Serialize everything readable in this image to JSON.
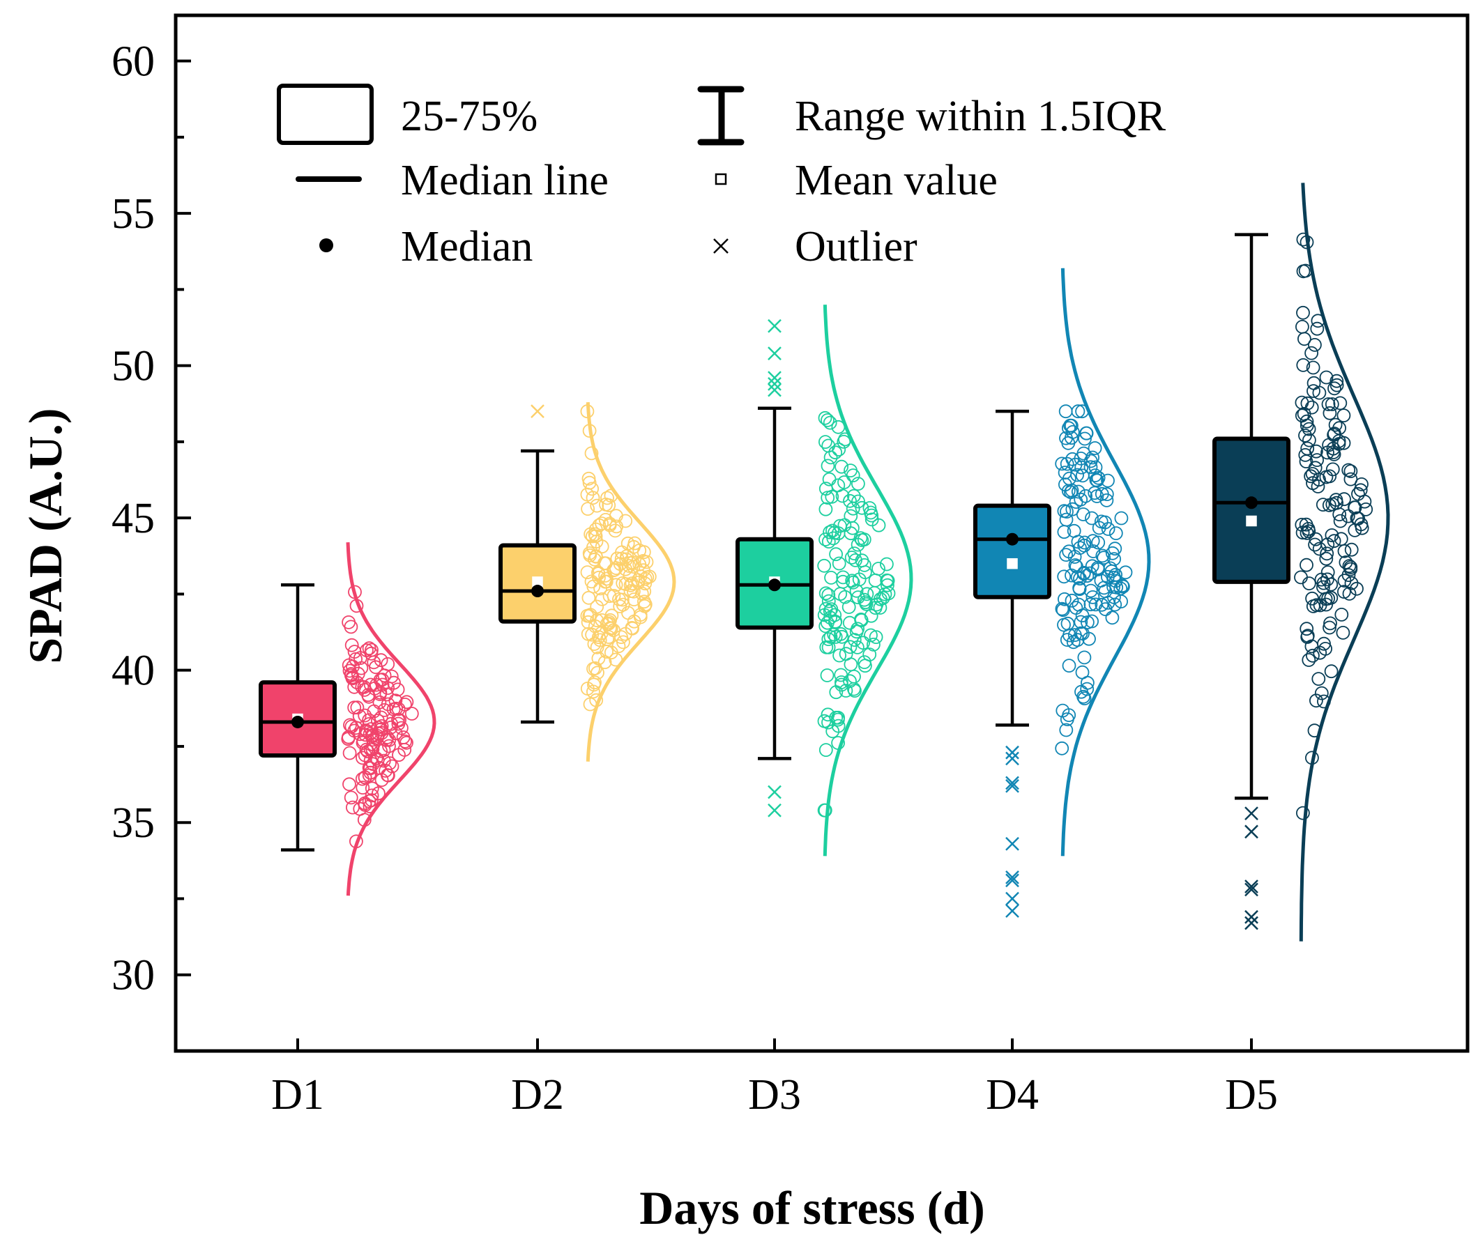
{
  "chart_data": {
    "type": "raincloud-boxplot",
    "title": "",
    "xlabel": "Days of stress (d)",
    "ylabel": "SPAD (A.U.)",
    "ylim": [
      27.5,
      61.5
    ],
    "yticks": [
      30,
      35,
      40,
      45,
      50,
      55,
      60
    ],
    "categories": [
      "D1",
      "D2",
      "D3",
      "D4",
      "D5"
    ],
    "colors": [
      "#f0436b",
      "#fcd06c",
      "#1dcf9f",
      "#1186b4",
      "#0a3e56"
    ],
    "box": [
      {
        "category": "D1",
        "whisker_low": 34.1,
        "q1": 37.2,
        "median": 38.3,
        "q3": 39.6,
        "whisker_high": 42.8,
        "mean": 38.4,
        "outliers": []
      },
      {
        "category": "D2",
        "whisker_low": 38.3,
        "q1": 41.6,
        "median": 42.6,
        "q3": 44.1,
        "whisker_high": 47.2,
        "mean": 42.9,
        "outliers": [
          48.5
        ]
      },
      {
        "category": "D3",
        "whisker_low": 37.1,
        "q1": 41.4,
        "median": 42.8,
        "q3": 44.3,
        "whisker_high": 48.6,
        "mean": 42.9,
        "outliers": [
          35.4,
          36.0,
          49.2,
          49.4,
          49.6,
          50.4,
          51.3
        ]
      },
      {
        "category": "D4",
        "whisker_low": 38.2,
        "q1": 42.4,
        "median": 44.3,
        "q3": 45.4,
        "whisker_high": 48.5,
        "mean": 43.5,
        "outliers": [
          32.1,
          32.5,
          33.1,
          33.2,
          34.3,
          36.2,
          36.3,
          37.1,
          37.3
        ]
      },
      {
        "category": "D5",
        "whisker_low": 35.8,
        "q1": 42.9,
        "median": 45.5,
        "q3": 47.6,
        "whisker_high": 54.3,
        "mean": 44.9,
        "outliers": [
          31.7,
          31.9,
          32.8,
          32.9,
          34.7,
          35.3
        ]
      }
    ],
    "distribution": [
      {
        "category": "D1",
        "mean": 38.3,
        "sd": 1.9,
        "min": 32.6,
        "max": 44.2,
        "points_range": [
          34.1,
          42.9
        ]
      },
      {
        "category": "D2",
        "mean": 42.9,
        "sd": 1.95,
        "min": 37.0,
        "max": 48.8,
        "points_range": [
          38.3,
          48.5
        ]
      },
      {
        "category": "D3",
        "mean": 43.0,
        "sd": 3.0,
        "min": 33.9,
        "max": 52.0,
        "points_range": [
          35.4,
          51.3
        ]
      },
      {
        "category": "D4",
        "mean": 43.6,
        "sd": 3.2,
        "min": 33.9,
        "max": 53.2,
        "points_range": [
          32.1,
          48.5
        ]
      },
      {
        "category": "D5",
        "mean": 45.0,
        "sd": 4.0,
        "min": 31.1,
        "max": 56.0,
        "points_range": [
          31.7,
          54.3
        ]
      }
    ],
    "legend": {
      "position": "top-left",
      "items": [
        {
          "symbol": "box",
          "label": "25-75%"
        },
        {
          "symbol": "whisker",
          "label": "Range within 1.5IQR"
        },
        {
          "symbol": "line",
          "label": "Median line"
        },
        {
          "symbol": "square",
          "label": "Mean value"
        },
        {
          "symbol": "dot",
          "label": "Median"
        },
        {
          "symbol": "cross",
          "label": "Outlier"
        }
      ]
    }
  }
}
